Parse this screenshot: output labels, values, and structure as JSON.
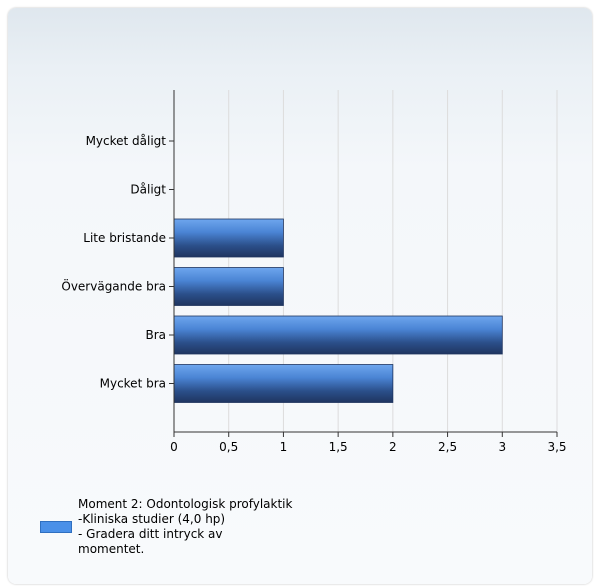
{
  "chart_data": {
    "type": "bar",
    "orientation": "horizontal",
    "categories": [
      "Mycket dåligt",
      "Dåligt",
      "Lite bristande",
      "Övervägande bra",
      "Bra",
      "Mycket bra"
    ],
    "series": [
      {
        "name": "Moment 2: Odontologisk profylaktik\n-Kliniska studier (4,0 hp)\n- Gradera ditt intryck av\nmomentet.",
        "values": [
          0,
          0,
          1,
          1,
          3,
          2
        ]
      }
    ],
    "xlim": [
      0,
      3.5
    ],
    "xticks": [
      "0",
      "0,5",
      "1",
      "1,5",
      "2",
      "2,5",
      "3",
      "3,5"
    ],
    "grid": true,
    "legend_position": "bottom-left",
    "bar_color": "#4a90e8"
  }
}
